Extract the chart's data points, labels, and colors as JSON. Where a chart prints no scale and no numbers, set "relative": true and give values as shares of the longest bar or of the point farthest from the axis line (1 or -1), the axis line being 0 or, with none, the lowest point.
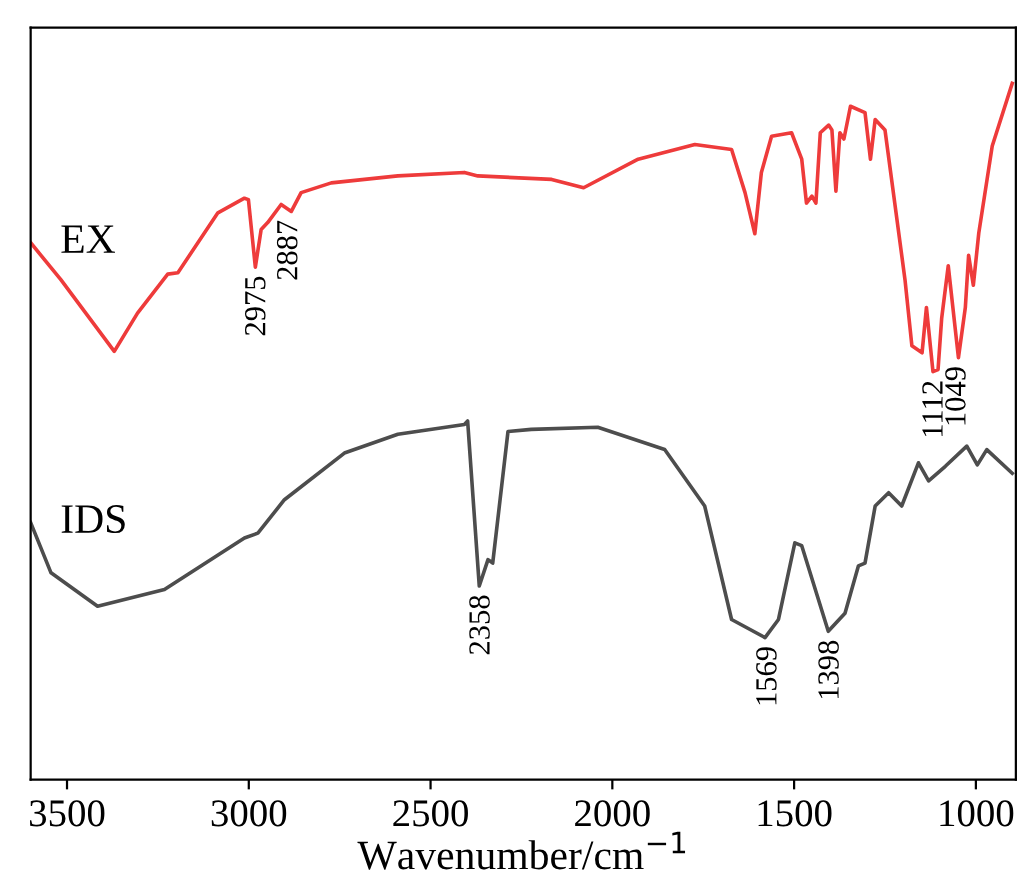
{
  "chart_data": {
    "type": "line",
    "relative": true,
    "xlabel": "Wavenumber/cm$^{−1}$",
    "xlim": [
      3600,
      890
    ],
    "xticks": [
      3500,
      3000,
      2500,
      2000,
      1500,
      1000
    ],
    "tick_labels": "x",
    "grid": false,
    "legend": false,
    "marker": "none",
    "line_style": "solid",
    "series": [
      {
        "name": "EX",
        "color": "#ee3b3b",
        "x": [
          3600,
          3517,
          3370,
          3306,
          3223,
          3195,
          3085,
          3012,
          3001,
          2982,
          2966,
          2948,
          2911,
          2883,
          2856,
          2773,
          2590,
          2407,
          2370,
          2167,
          2079,
          1929,
          1773,
          1672,
          1635,
          1608,
          1590,
          1562,
          1507,
          1479,
          1466,
          1451,
          1440,
          1428,
          1405,
          1396,
          1385,
          1374,
          1363,
          1345,
          1305,
          1290,
          1277,
          1250,
          1195,
          1176,
          1148,
          1136,
          1118,
          1104,
          1094,
          1076,
          1048,
          1029,
          1020,
          1007,
          992,
          955,
          900
        ],
        "values": [
          0.771,
          0.718,
          0.615,
          0.67,
          0.726,
          0.728,
          0.814,
          0.835,
          0.833,
          0.736,
          0.79,
          0.8,
          0.826,
          0.816,
          0.843,
          0.857,
          0.867,
          0.872,
          0.867,
          0.862,
          0.85,
          0.891,
          0.912,
          0.905,
          0.843,
          0.784,
          0.872,
          0.924,
          0.929,
          0.891,
          0.828,
          0.838,
          0.828,
          0.929,
          0.94,
          0.933,
          0.845,
          0.929,
          0.92,
          0.967,
          0.958,
          0.891,
          0.948,
          0.933,
          0.718,
          0.623,
          0.613,
          0.678,
          0.586,
          0.589,
          0.663,
          0.738,
          0.606,
          0.678,
          0.753,
          0.71,
          0.785,
          0.91,
          1.0
        ]
      },
      {
        "name": "IDS",
        "color": "#4d4d4d",
        "x": [
          3600,
          3544,
          3416,
          3232,
          3012,
          2975,
          2902,
          2737,
          2590,
          2407,
          2398,
          2366,
          2342,
          2329,
          2287,
          2223,
          2040,
          1856,
          1746,
          1672,
          1580,
          1543,
          1498,
          1479,
          1406,
          1360,
          1323,
          1305,
          1277,
          1240,
          1204,
          1158,
          1130,
          1084,
          1025,
          996,
          970,
          900
        ],
        "values": [
          0.369,
          0.297,
          0.249,
          0.273,
          0.347,
          0.354,
          0.402,
          0.469,
          0.496,
          0.51,
          0.515,
          0.278,
          0.316,
          0.311,
          0.5,
          0.503,
          0.506,
          0.474,
          0.393,
          0.23,
          0.204,
          0.23,
          0.34,
          0.336,
          0.213,
          0.239,
          0.307,
          0.311,
          0.393,
          0.412,
          0.393,
          0.455,
          0.429,
          0.45,
          0.479,
          0.452,
          0.474,
          0.44
        ]
      }
    ],
    "annotations": [
      {
        "text": "2975",
        "x": 2975,
        "y": 0.736
      },
      {
        "text": "2887",
        "x": 2887,
        "y": 0.816
      },
      {
        "text": "1112",
        "x": 1112,
        "y": 0.586
      },
      {
        "text": "1049",
        "x": 1049,
        "y": 0.606
      },
      {
        "text": "2358",
        "x": 2358,
        "y": 0.278
      },
      {
        "text": "1569",
        "x": 1569,
        "y": 0.204
      },
      {
        "text": "1398",
        "x": 1398,
        "y": 0.213
      }
    ]
  }
}
